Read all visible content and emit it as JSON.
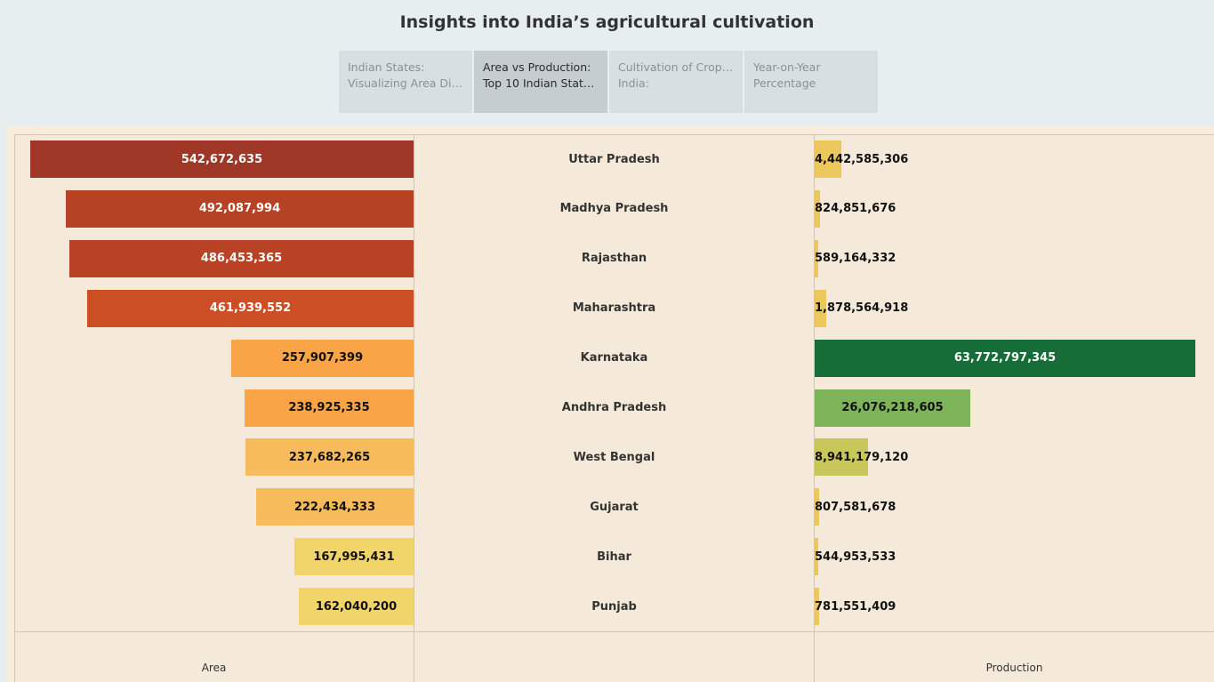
{
  "title": "Insights into India’s agricultural cultivation",
  "tabs": [
    {
      "line1": "Indian States:",
      "line2": "Visualizing Area Distr..",
      "active": false
    },
    {
      "line1": "Area vs Production:",
      "line2": "Top 10 Indian States -..",
      "active": true
    },
    {
      "line1": "Cultivation of Crops in",
      "line2": "India:",
      "active": false
    },
    {
      "line1": "Year-on-Year",
      "line2": "Percentage",
      "active": false
    }
  ],
  "chart_data": {
    "type": "bar",
    "layout": "butterfly",
    "categories": [
      "Uttar Pradesh",
      "Madhya Pradesh",
      "Rajasthan",
      "Maharashtra",
      "Karnataka",
      "Andhra Pradesh",
      "West Bengal",
      "Gujarat",
      "Bihar",
      "Punjab"
    ],
    "series": [
      {
        "name": "Area",
        "values": [
          542672635,
          492087994,
          486453365,
          461939552,
          257907399,
          238925335,
          237682265,
          222434333,
          167995431,
          162040200
        ],
        "labels": [
          "542,672,635",
          "492,087,994",
          "486,453,365",
          "461,939,552",
          "257,907,399",
          "238,925,335",
          "237,682,265",
          "222,434,333",
          "167,995,431",
          "162,040,200"
        ],
        "colors": [
          "#9e3725",
          "#b44223",
          "#b84223",
          "#cc4e25",
          "#f8a447",
          "#f8a447",
          "#f7bb5b",
          "#f7bb5b",
          "#f2d56a",
          "#f2d56a"
        ]
      },
      {
        "name": "Production",
        "values": [
          4442585306,
          824851676,
          589164332,
          1878564918,
          63772797345,
          26076218605,
          8941179120,
          807581678,
          544953533,
          781551409
        ],
        "labels": [
          "4,442,585,306",
          "824,851,676",
          "589,164,332",
          "1,878,564,918",
          "63,772,797,345",
          "26,076,218,605",
          "8,941,179,120",
          "807,581,678",
          "544,953,533",
          "781,551,409"
        ],
        "colors": [
          "#ecc75b",
          "#ecc75b",
          "#ecc75b",
          "#ecc75b",
          "#166d37",
          "#7db359",
          "#c9c65a",
          "#ecc75b",
          "#ecc75b",
          "#ecc75b"
        ]
      }
    ],
    "xlabel_left": "Area",
    "xlabel_right": "Production"
  }
}
